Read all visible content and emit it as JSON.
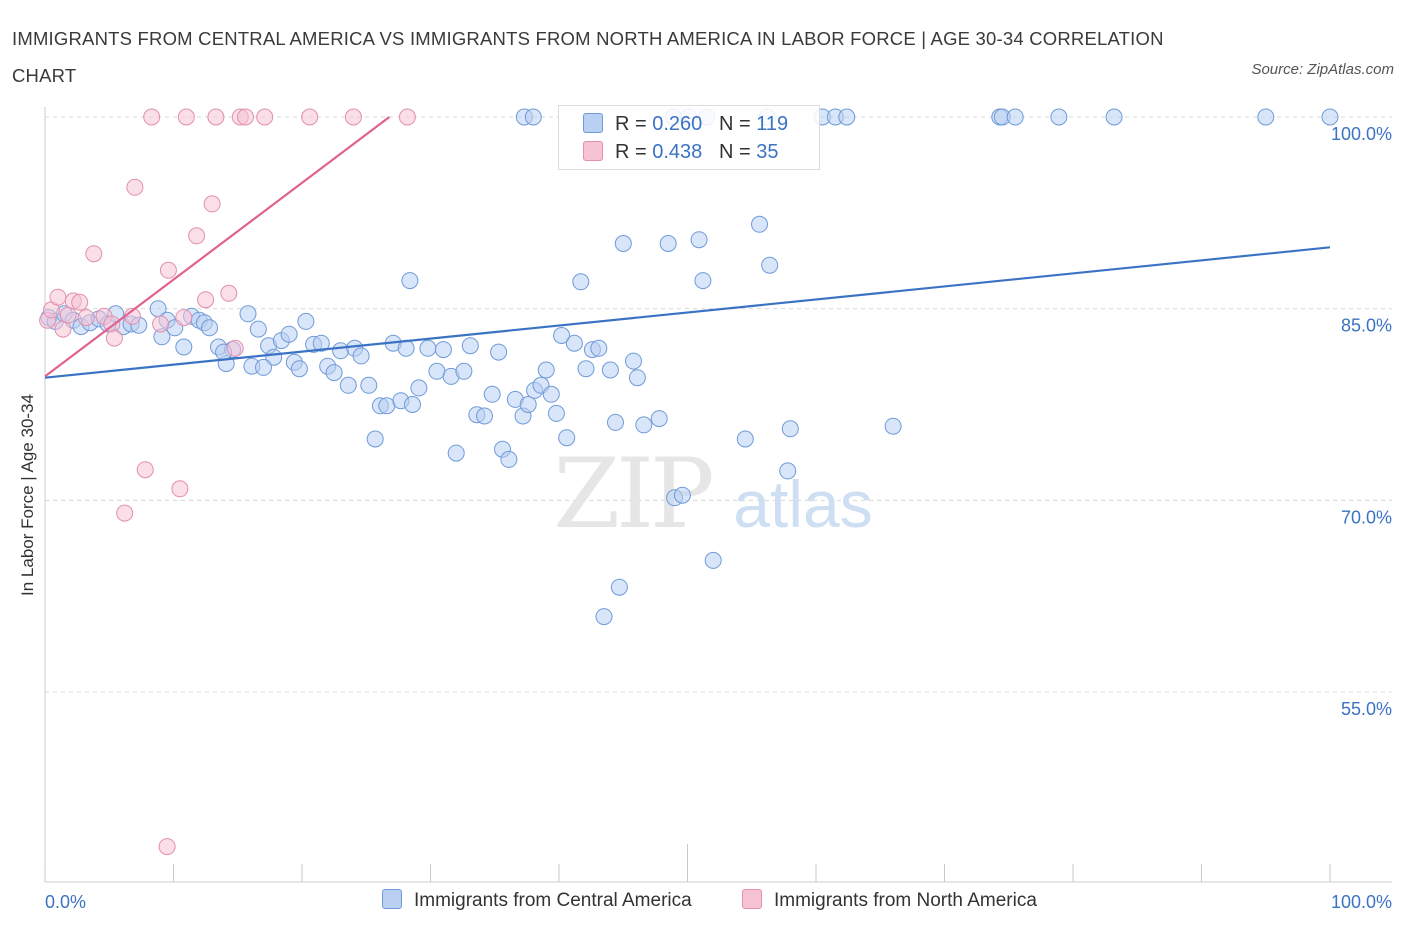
{
  "title": "IMMIGRANTS FROM CENTRAL AMERICA VS IMMIGRANTS FROM NORTH AMERICA IN LABOR FORCE | AGE 30-34 CORRELATION CHART",
  "source": "Source: ZipAtlas.com",
  "watermark": {
    "zip": "ZIP",
    "atlas": "atlas"
  },
  "colors": {
    "blue": "#3b73c4",
    "blue_fill": "#b9d0f2",
    "pink": "#e0628e",
    "pink_fill": "#f6c3d5",
    "grid": "#d8d8d8"
  },
  "legend": {
    "rows": [
      {
        "r_label": "R = ",
        "r_value": "0.260",
        "n_label": "N = ",
        "n_value": "119"
      },
      {
        "r_label": "R = ",
        "r_value": "0.438",
        "n_label": "N = ",
        "n_value": "35"
      }
    ]
  },
  "bottom_legend": [
    "Immigrants from Central America",
    "Immigrants from North America"
  ],
  "chart_data": {
    "type": "scatter",
    "title": "IMMIGRANTS FROM CENTRAL AMERICA VS IMMIGRANTS FROM NORTH AMERICA IN LABOR FORCE | AGE 30-34 CORRELATION CHART",
    "xlabel": "",
    "ylabel": "In Labor Force | Age 30-34",
    "xlim": [
      0,
      100
    ],
    "ylim": [
      40,
      100
    ],
    "x_tick_labels": [
      "0.0%",
      "100.0%"
    ],
    "y_ticks": [
      55,
      70,
      85,
      100
    ],
    "y_tick_labels": [
      "55.0%",
      "70.0%",
      "85.0%",
      "100.0%"
    ],
    "grid": "horizontal dashed",
    "series": [
      {
        "name": "Immigrants from Central America",
        "R": 0.26,
        "N": 119,
        "trend": {
          "x": [
            0,
            100
          ],
          "y": [
            79.6,
            89.8
          ]
        },
        "points": [
          [
            0.3,
            84.3
          ],
          [
            0.8,
            84.0
          ],
          [
            1.5,
            84.6
          ],
          [
            2.2,
            84.1
          ],
          [
            2.8,
            83.6
          ],
          [
            3.5,
            83.9
          ],
          [
            4.2,
            84.2
          ],
          [
            4.9,
            83.8
          ],
          [
            5.5,
            84.6
          ],
          [
            6.1,
            83.6
          ],
          [
            6.7,
            83.8
          ],
          [
            8.8,
            85.0
          ],
          [
            9.1,
            82.8
          ],
          [
            9.5,
            84.1
          ],
          [
            10.1,
            83.5
          ],
          [
            10.8,
            82.0
          ],
          [
            11.4,
            84.4
          ],
          [
            12.0,
            84.1
          ],
          [
            12.4,
            83.9
          ],
          [
            12.8,
            83.5
          ],
          [
            13.5,
            82.0
          ],
          [
            14.1,
            80.7
          ],
          [
            14.6,
            81.8
          ],
          [
            15.8,
            84.6
          ],
          [
            16.1,
            80.5
          ],
          [
            16.6,
            83.4
          ],
          [
            17.4,
            82.1
          ],
          [
            17.8,
            81.2
          ],
          [
            18.4,
            82.5
          ],
          [
            19.0,
            83.0
          ],
          [
            19.4,
            80.8
          ],
          [
            19.8,
            80.3
          ],
          [
            20.3,
            84.0
          ],
          [
            20.9,
            82.2
          ],
          [
            21.5,
            82.3
          ],
          [
            22.0,
            80.5
          ],
          [
            22.5,
            80.0
          ],
          [
            23.0,
            81.7
          ],
          [
            23.6,
            79.0
          ],
          [
            24.1,
            81.9
          ],
          [
            24.6,
            81.3
          ],
          [
            25.2,
            79.0
          ],
          [
            25.7,
            74.8
          ],
          [
            26.1,
            77.4
          ],
          [
            26.6,
            77.4
          ],
          [
            27.1,
            82.3
          ],
          [
            27.7,
            77.8
          ],
          [
            28.1,
            81.9
          ],
          [
            28.6,
            77.5
          ],
          [
            29.1,
            78.8
          ],
          [
            29.8,
            81.9
          ],
          [
            30.5,
            80.1
          ],
          [
            31.0,
            81.8
          ],
          [
            31.6,
            79.7
          ],
          [
            32.0,
            73.7
          ],
          [
            32.6,
            80.1
          ],
          [
            33.1,
            82.1
          ],
          [
            33.6,
            76.7
          ],
          [
            34.2,
            76.6
          ],
          [
            34.8,
            78.3
          ],
          [
            35.3,
            81.6
          ],
          [
            35.6,
            74.0
          ],
          [
            36.1,
            73.2
          ],
          [
            36.6,
            77.9
          ],
          [
            37.2,
            76.6
          ],
          [
            37.6,
            77.5
          ],
          [
            38.1,
            78.6
          ],
          [
            38.6,
            79.0
          ],
          [
            39.0,
            80.2
          ],
          [
            39.4,
            78.3
          ],
          [
            39.8,
            76.8
          ],
          [
            40.2,
            82.9
          ],
          [
            40.6,
            74.9
          ],
          [
            41.2,
            82.3
          ],
          [
            41.7,
            87.1
          ],
          [
            42.1,
            80.3
          ],
          [
            42.6,
            81.8
          ],
          [
            43.1,
            81.9
          ],
          [
            43.5,
            60.9
          ],
          [
            44.0,
            80.2
          ],
          [
            44.4,
            76.1
          ],
          [
            44.7,
            63.2
          ],
          [
            45.0,
            90.1
          ],
          [
            45.8,
            80.9
          ],
          [
            46.1,
            79.6
          ],
          [
            46.6,
            75.9
          ],
          [
            47.8,
            76.4
          ],
          [
            48.5,
            90.1
          ],
          [
            49.0,
            70.2
          ],
          [
            49.6,
            70.4
          ],
          [
            50.9,
            90.4
          ],
          [
            51.2,
            87.2
          ],
          [
            52.0,
            65.3
          ],
          [
            54.5,
            74.8
          ],
          [
            55.6,
            91.6
          ],
          [
            56.4,
            88.4
          ],
          [
            57.8,
            72.3
          ],
          [
            58.0,
            75.6
          ],
          [
            60.5,
            100
          ],
          [
            61.5,
            100
          ],
          [
            62.4,
            100
          ],
          [
            66.0,
            75.8
          ],
          [
            74.3,
            100
          ],
          [
            74.5,
            100
          ],
          [
            75.5,
            100
          ],
          [
            78.9,
            100
          ],
          [
            83.2,
            100
          ],
          [
            95.0,
            100
          ],
          [
            100.0,
            100
          ],
          [
            48.9,
            100
          ],
          [
            50.1,
            100
          ],
          [
            51.5,
            100
          ],
          [
            37.3,
            100
          ],
          [
            38.0,
            100
          ],
          [
            56.2,
            100
          ],
          [
            13.9,
            81.6
          ],
          [
            17.0,
            80.4
          ],
          [
            28.4,
            87.2
          ],
          [
            7.3,
            83.7
          ]
        ]
      },
      {
        "name": "Immigrants from North America",
        "R": 0.438,
        "N": 35,
        "trend": {
          "x": [
            0,
            26.8
          ],
          "y": [
            79.7,
            100
          ]
        },
        "points": [
          [
            0.2,
            84.1
          ],
          [
            0.5,
            84.9
          ],
          [
            1.0,
            85.9
          ],
          [
            1.4,
            83.4
          ],
          [
            1.8,
            84.5
          ],
          [
            2.2,
            85.6
          ],
          [
            2.7,
            85.5
          ],
          [
            3.2,
            84.3
          ],
          [
            3.8,
            89.3
          ],
          [
            4.6,
            84.4
          ],
          [
            5.2,
            83.8
          ],
          [
            5.4,
            82.7
          ],
          [
            6.2,
            69.0
          ],
          [
            6.8,
            84.4
          ],
          [
            7.0,
            94.5
          ],
          [
            7.8,
            72.4
          ],
          [
            8.3,
            100
          ],
          [
            9.0,
            83.8
          ],
          [
            9.5,
            42.9
          ],
          [
            9.6,
            88.0
          ],
          [
            10.5,
            70.9
          ],
          [
            10.8,
            84.3
          ],
          [
            11.0,
            100
          ],
          [
            11.8,
            90.7
          ],
          [
            12.5,
            85.7
          ],
          [
            13.0,
            93.2
          ],
          [
            13.3,
            100
          ],
          [
            14.3,
            86.2
          ],
          [
            14.8,
            81.9
          ],
          [
            15.2,
            100
          ],
          [
            15.6,
            100
          ],
          [
            17.1,
            100
          ],
          [
            20.6,
            100
          ],
          [
            24.0,
            100
          ],
          [
            28.2,
            100
          ]
        ]
      }
    ]
  }
}
